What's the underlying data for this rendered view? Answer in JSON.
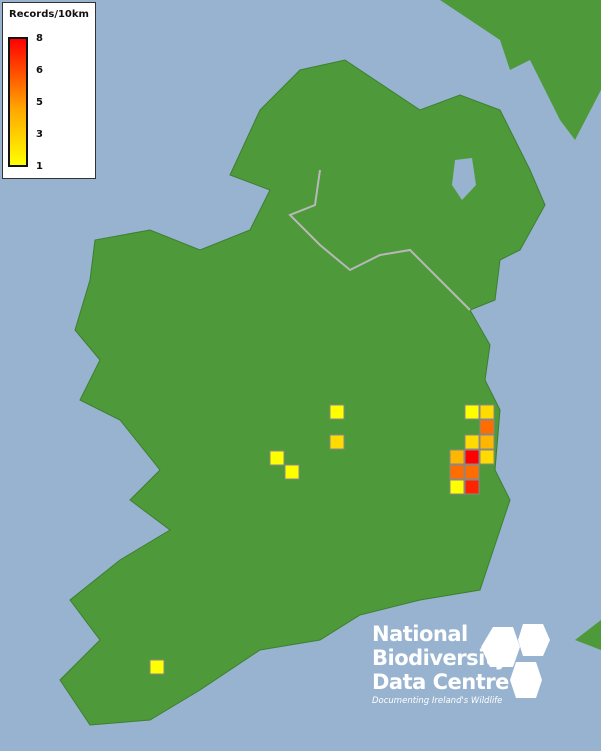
{
  "legend": {
    "title": "Records/10km",
    "ticks": [
      "8",
      "6",
      "5",
      "3",
      "1"
    ],
    "color_min": "#ffff00",
    "color_max": "#ff0000"
  },
  "records": [
    {
      "count": 1
    },
    {
      "count": 2
    },
    {
      "count": 5
    },
    {
      "count": 2
    },
    {
      "count": 3
    },
    {
      "count": 3
    },
    {
      "count": 8
    },
    {
      "count": 2
    },
    {
      "count": 5
    },
    {
      "count": 5
    },
    {
      "count": 1
    },
    {
      "count": 7
    },
    {
      "count": 1
    },
    {
      "count": 2
    },
    {
      "count": 1
    },
    {
      "count": 1
    },
    {
      "count": 1
    }
  ],
  "colors": {
    "sea": "#97b3cf",
    "land": "#4e9a3a",
    "border": "#b8b8b8"
  },
  "logo": {
    "line1": "National",
    "line2": "Biodiversity",
    "line3": "Data Centre",
    "tagline": "Documenting Ireland's Wildlife"
  }
}
